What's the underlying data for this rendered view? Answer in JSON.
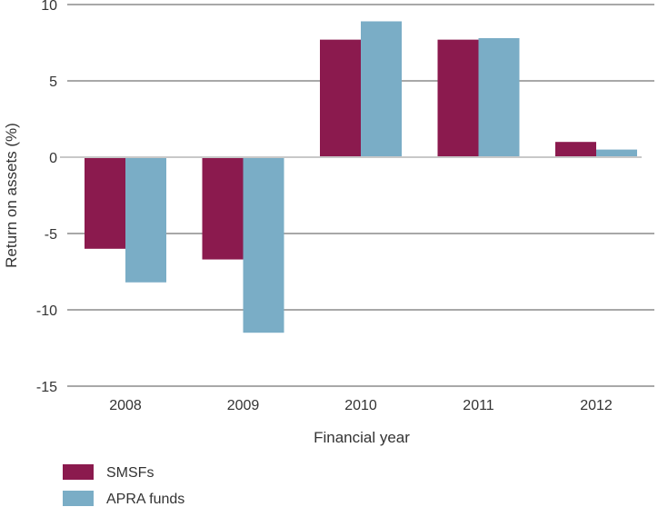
{
  "chart_data": {
    "type": "bar",
    "title": "",
    "xlabel": "Financial year",
    "ylabel": "Return on assets (%)",
    "categories": [
      "2008",
      "2009",
      "2010",
      "2011",
      "2012"
    ],
    "ylim": [
      -15,
      10
    ],
    "yticks": [
      10,
      5,
      0,
      -5,
      -10,
      -15
    ],
    "ytick_labels": [
      "10",
      "5",
      "0",
      "-5",
      "-10",
      "-15"
    ],
    "grid": true,
    "legend_position": "bottom-left",
    "series": [
      {
        "name": "SMSFs",
        "color": "#8b1a4e",
        "values": [
          -6.0,
          -6.7,
          7.7,
          7.7,
          1.0
        ]
      },
      {
        "name": "APRA funds",
        "color": "#7aadc6",
        "values": [
          -8.2,
          -11.5,
          8.9,
          7.8,
          0.5
        ]
      }
    ]
  }
}
